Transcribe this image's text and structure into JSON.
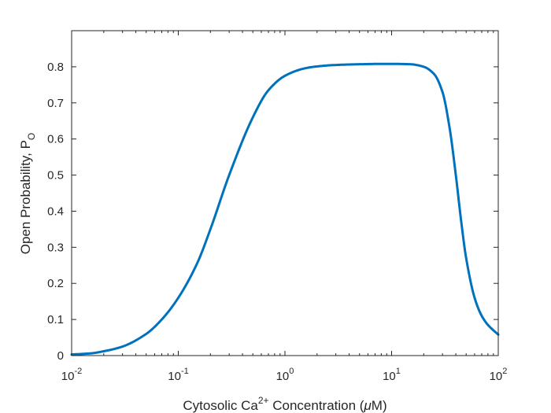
{
  "chart_data": {
    "type": "line",
    "title": "",
    "xlabel": {
      "prefix": "Cytosolic Ca",
      "superscript": "2+",
      "suffix": " Concentration (",
      "symbol": "μ",
      "unit_end": "M)"
    },
    "ylabel": {
      "main": "Open Probability, P",
      "subscript": "O"
    },
    "x_scale": "log",
    "xlim": [
      0.01,
      100
    ],
    "ylim": [
      0,
      0.9
    ],
    "x_ticks": [
      {
        "value": 0.01,
        "base": "10",
        "exp": "-2"
      },
      {
        "value": 0.1,
        "base": "10",
        "exp": "-1"
      },
      {
        "value": 1,
        "base": "10",
        "exp": "0"
      },
      {
        "value": 10,
        "base": "10",
        "exp": "1"
      },
      {
        "value": 100,
        "base": "10",
        "exp": "2"
      }
    ],
    "y_ticks": [
      {
        "value": 0,
        "label": "0"
      },
      {
        "value": 0.1,
        "label": "0.1"
      },
      {
        "value": 0.2,
        "label": "0.2"
      },
      {
        "value": 0.3,
        "label": "0.3"
      },
      {
        "value": 0.4,
        "label": "0.4"
      },
      {
        "value": 0.5,
        "label": "0.5"
      },
      {
        "value": 0.6,
        "label": "0.6"
      },
      {
        "value": 0.7,
        "label": "0.7"
      },
      {
        "value": 0.8,
        "label": "0.8"
      }
    ],
    "series": [
      {
        "name": "P_O",
        "color": "#0072BD",
        "x": [
          0.01,
          0.015,
          0.02,
          0.03,
          0.05,
          0.07,
          0.1,
          0.15,
          0.2,
          0.3,
          0.5,
          0.7,
          1,
          1.5,
          2,
          3,
          5,
          8,
          10,
          15,
          20,
          25,
          30,
          35,
          40,
          45,
          50,
          60,
          70,
          80,
          100
        ],
        "y": [
          0.003,
          0.006,
          0.012,
          0.025,
          0.06,
          0.1,
          0.16,
          0.255,
          0.35,
          0.5,
          0.66,
          0.735,
          0.775,
          0.795,
          0.801,
          0.805,
          0.807,
          0.808,
          0.808,
          0.807,
          0.8,
          0.78,
          0.73,
          0.63,
          0.5,
          0.37,
          0.27,
          0.16,
          0.11,
          0.085,
          0.058
        ]
      }
    ],
    "grid": false,
    "legend": "none"
  }
}
